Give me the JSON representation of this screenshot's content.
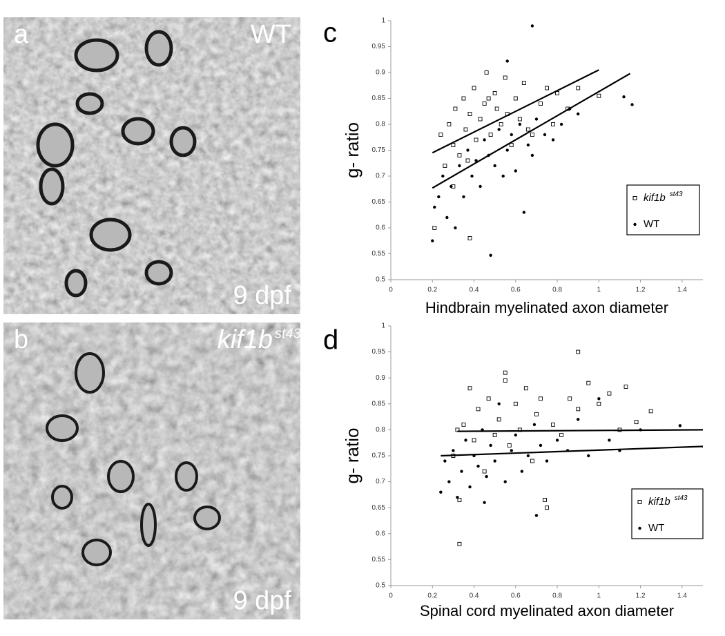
{
  "images": [
    {
      "label": "a",
      "caption": "WT",
      "age": "9 dpf"
    },
    {
      "label": "b",
      "caption": "kif1b",
      "caption_superscript": "st43",
      "age": "9 dpf"
    }
  ],
  "chart_data": [
    {
      "type": "scatter",
      "label": "c",
      "x_label": "Hindbrain myelinated axon diameter",
      "y_label": "g- ratio",
      "xlim": [
        0,
        1.5
      ],
      "xticks": [
        0,
        0.2,
        0.4,
        0.6,
        0.8,
        1,
        1.2,
        1.4
      ],
      "ylim": [
        0.5,
        1
      ],
      "yticks": [
        0.5,
        0.55,
        0.6,
        0.65,
        0.7,
        0.75,
        0.8,
        0.85,
        0.9,
        0.95,
        1
      ],
      "legend": "right",
      "series": [
        {
          "name": "kif1b",
          "superscript": "st43",
          "marker": "square",
          "color": "#000000",
          "x": [
            0.21,
            0.24,
            0.26,
            0.28,
            0.3,
            0.31,
            0.33,
            0.35,
            0.36,
            0.38,
            0.4,
            0.41,
            0.43,
            0.45,
            0.46,
            0.48,
            0.5,
            0.51,
            0.53,
            0.55,
            0.56,
            0.58,
            0.6,
            0.62,
            0.64,
            0.66,
            0.68,
            0.72,
            0.75,
            0.78,
            0.8,
            0.85,
            0.9,
            1.0,
            0.3,
            0.38,
            0.47,
            0.37
          ],
          "values": [
            0.6,
            0.78,
            0.72,
            0.8,
            0.76,
            0.83,
            0.74,
            0.85,
            0.79,
            0.82,
            0.87,
            0.77,
            0.81,
            0.84,
            0.9,
            0.78,
            0.86,
            0.83,
            0.8,
            0.89,
            0.82,
            0.76,
            0.85,
            0.81,
            0.88,
            0.79,
            0.78,
            0.84,
            0.87,
            0.8,
            0.86,
            0.83,
            0.87,
            0.855,
            0.68,
            0.58,
            0.85,
            0.73
          ],
          "trend": {
            "x": [
              0.2,
              1.0
            ],
            "y": [
              0.745,
              0.905
            ]
          }
        },
        {
          "name": "WT",
          "marker": "circle",
          "color": "#000000",
          "x": [
            0.2,
            0.21,
            0.23,
            0.25,
            0.27,
            0.29,
            0.31,
            0.33,
            0.35,
            0.37,
            0.39,
            0.41,
            0.43,
            0.45,
            0.47,
            0.48,
            0.5,
            0.52,
            0.54,
            0.56,
            0.58,
            0.6,
            0.62,
            0.64,
            0.66,
            0.68,
            0.7,
            0.74,
            0.78,
            0.82,
            0.86,
            0.9,
            1.12,
            1.16,
            0.68,
            0.56
          ],
          "values": [
            0.575,
            0.64,
            0.66,
            0.7,
            0.62,
            0.68,
            0.6,
            0.72,
            0.66,
            0.75,
            0.7,
            0.73,
            0.68,
            0.77,
            0.74,
            0.547,
            0.72,
            0.79,
            0.7,
            0.75,
            0.78,
            0.71,
            0.8,
            0.63,
            0.76,
            0.99,
            0.81,
            0.78,
            0.77,
            0.8,
            0.83,
            0.82,
            0.853,
            0.838,
            0.74,
            0.922
          ],
          "trend": {
            "x": [
              0.2,
              1.15
            ],
            "y": [
              0.677,
              0.898
            ]
          }
        }
      ]
    },
    {
      "type": "scatter",
      "label": "d",
      "x_label": "Spinal cord myelinated axon diameter",
      "y_label": "g- ratio",
      "xlim": [
        0,
        1.5
      ],
      "xticks": [
        0,
        0.2,
        0.4,
        0.6,
        0.8,
        1,
        1.2,
        1.4
      ],
      "ylim": [
        0.5,
        1
      ],
      "yticks": [
        0.5,
        0.55,
        0.6,
        0.65,
        0.7,
        0.75,
        0.8,
        0.85,
        0.9,
        0.95,
        1
      ],
      "legend": "right",
      "series": [
        {
          "name": "kif1b",
          "superscript": "st43",
          "marker": "square",
          "color": "#000000",
          "x": [
            0.3,
            0.32,
            0.33,
            0.35,
            0.38,
            0.4,
            0.42,
            0.45,
            0.47,
            0.5,
            0.52,
            0.55,
            0.57,
            0.6,
            0.62,
            0.65,
            0.68,
            0.7,
            0.72,
            0.75,
            0.78,
            0.82,
            0.86,
            0.9,
            0.95,
            1.0,
            1.05,
            1.1,
            1.13,
            1.18,
            1.25,
            0.33,
            0.74,
            0.55,
            0.9
          ],
          "values": [
            0.75,
            0.8,
            0.665,
            0.81,
            0.88,
            0.78,
            0.84,
            0.72,
            0.86,
            0.79,
            0.82,
            0.91,
            0.77,
            0.85,
            0.8,
            0.88,
            0.74,
            0.83,
            0.86,
            0.65,
            0.81,
            0.79,
            0.86,
            0.84,
            0.89,
            0.85,
            0.87,
            0.8,
            0.883,
            0.815,
            0.836,
            0.58,
            0.665,
            0.895,
            0.95
          ],
          "trend": {
            "x": [
              0.32,
              1.5
            ],
            "y": [
              0.797,
              0.8
            ]
          }
        },
        {
          "name": "WT",
          "marker": "circle",
          "color": "#000000",
          "x": [
            0.24,
            0.26,
            0.28,
            0.3,
            0.32,
            0.34,
            0.36,
            0.38,
            0.4,
            0.42,
            0.44,
            0.46,
            0.48,
            0.5,
            0.52,
            0.55,
            0.58,
            0.6,
            0.63,
            0.66,
            0.69,
            0.72,
            0.75,
            0.8,
            0.85,
            0.9,
            0.95,
            1.0,
            1.05,
            1.1,
            1.2,
            1.39,
            0.7,
            0.45
          ],
          "values": [
            0.68,
            0.74,
            0.7,
            0.76,
            0.67,
            0.72,
            0.78,
            0.69,
            0.75,
            0.73,
            0.8,
            0.71,
            0.77,
            0.74,
            0.85,
            0.7,
            0.76,
            0.79,
            0.72,
            0.75,
            0.81,
            0.77,
            0.74,
            0.78,
            0.76,
            0.82,
            0.75,
            0.86,
            0.78,
            0.76,
            0.8,
            0.808,
            0.635,
            0.66
          ],
          "trend": {
            "x": [
              0.24,
              1.5
            ],
            "y": [
              0.75,
              0.768
            ]
          }
        }
      ]
    }
  ]
}
